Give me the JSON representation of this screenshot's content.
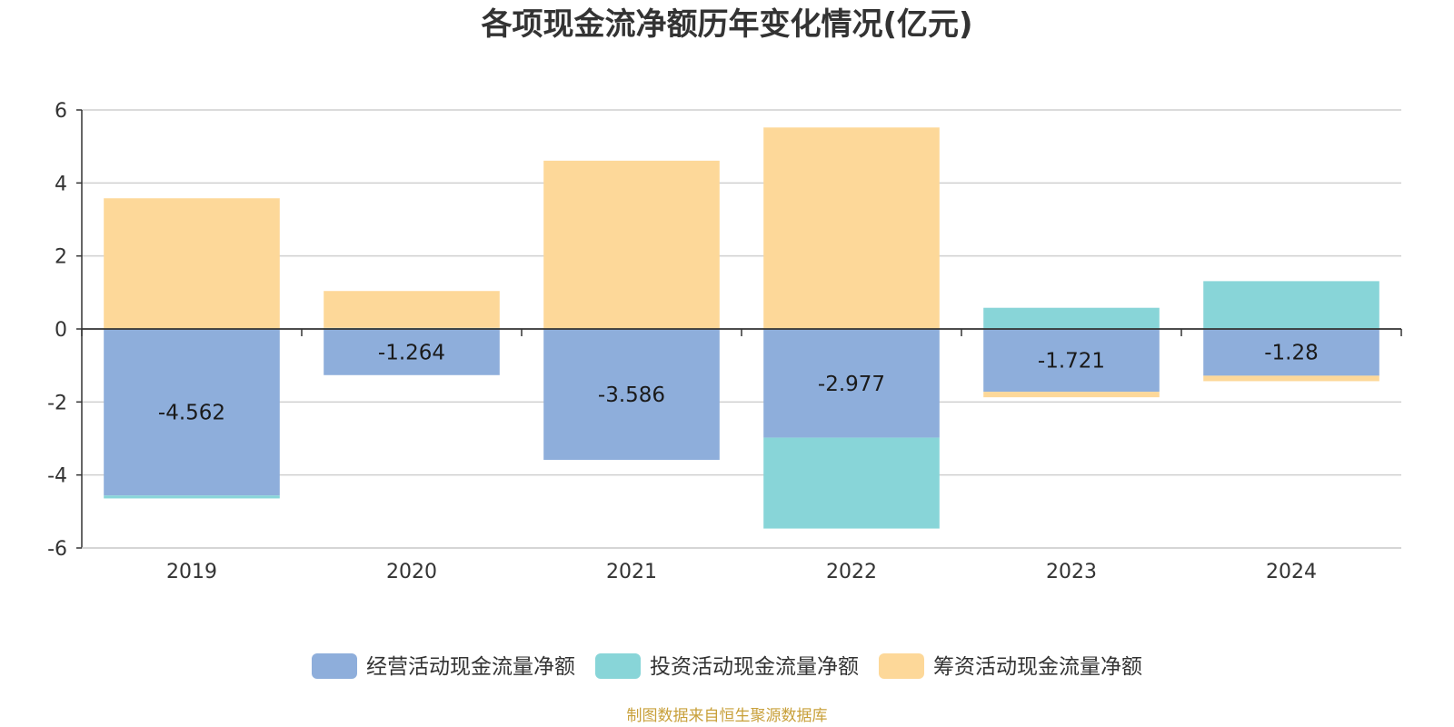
{
  "chart_data": {
    "type": "bar",
    "stacked": true,
    "title": "各项现金流净额历年变化情况(亿元)",
    "categories": [
      "2019",
      "2020",
      "2021",
      "2022",
      "2023",
      "2024"
    ],
    "ylim": [
      -6,
      6
    ],
    "yticks": [
      6,
      4,
      2,
      0,
      -2,
      -4,
      -6
    ],
    "grid": true,
    "legend_position": "bottom",
    "series": [
      {
        "name": "经营活动现金流量净额",
        "color": "#8eaedb",
        "values": [
          -4.562,
          -1.264,
          -3.586,
          -2.977,
          -1.721,
          -1.28
        ],
        "labels": [
          "-4.562",
          "-1.264",
          "-3.586",
          "-2.977",
          "-1.721",
          "-1.28"
        ]
      },
      {
        "name": "投资活动现金流量净额",
        "color": "#88d5d8",
        "values": [
          -0.08,
          0.03,
          0.0,
          -2.49,
          0.58,
          1.31
        ]
      },
      {
        "name": "筹资活动现金流量净额",
        "color": "#fdd899",
        "values": [
          3.58,
          1.01,
          4.61,
          5.52,
          -0.15,
          -0.15
        ]
      }
    ]
  },
  "source": "制图数据来自恒生聚源数据库"
}
